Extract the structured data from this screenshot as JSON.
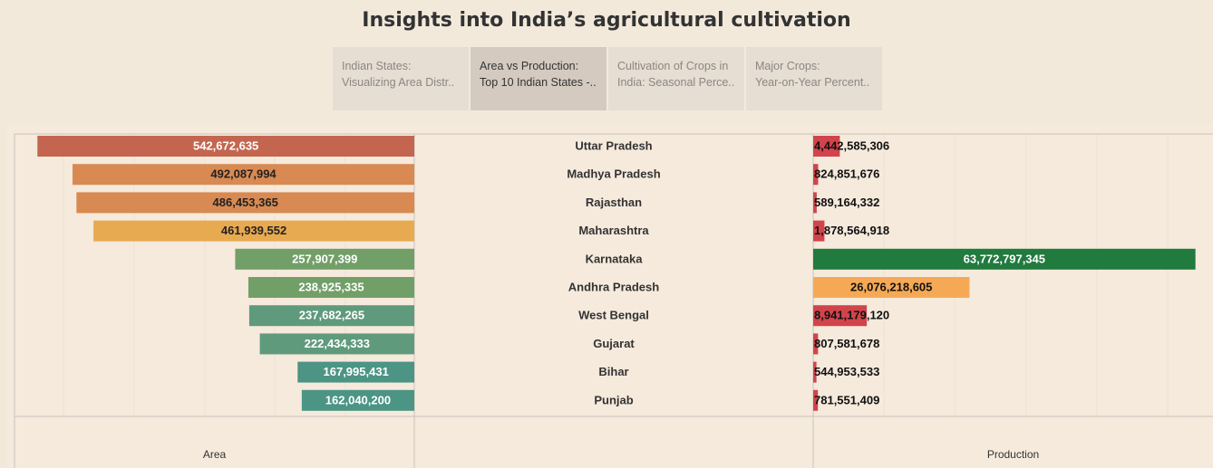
{
  "title": "Insights into India’s agricultural cultivation",
  "tabs": [
    {
      "line1": "Indian States:",
      "line2": "Visualizing Area Distr..",
      "active": false
    },
    {
      "line1": "Area vs Production:",
      "line2": "Top 10 Indian States -..",
      "active": true
    },
    {
      "line1": "Cultivation of Crops in",
      "line2": "India: Seasonal Perce..",
      "active": false
    },
    {
      "line1": "Major Crops:",
      "line2": "Year-on-Year Percent..",
      "active": false
    }
  ],
  "chart_data": {
    "type": "bar",
    "categories": [
      "Uttar Pradesh",
      "Madhya Pradesh",
      "Rajasthan",
      "Maharashtra",
      "Karnataka",
      "Andhra Pradesh",
      "West Bengal",
      "Gujarat",
      "Bihar",
      "Punjab"
    ],
    "area": {
      "axis_label": "Area",
      "values": [
        542672635,
        492087994,
        486453365,
        461939552,
        257907399,
        238925335,
        237682265,
        222434333,
        167995431,
        162040200
      ],
      "labels": [
        "542,672,635",
        "492,087,994",
        "486,453,365",
        "461,939,552",
        "257,907,399",
        "238,925,335",
        "237,682,265",
        "222,434,333",
        "167,995,431",
        "162,040,200"
      ],
      "colors": [
        "#c4664f",
        "#d88a52",
        "#d88a52",
        "#e8aa50",
        "#729f68",
        "#729f68",
        "#5f9a7c",
        "#5f9a7c",
        "#4c9484",
        "#4c9484"
      ],
      "label_colors": [
        "#ffffff",
        "#222222",
        "#222222",
        "#222222",
        "#ffffff",
        "#ffffff",
        "#ffffff",
        "#ffffff",
        "#ffffff",
        "#ffffff"
      ]
    },
    "production": {
      "axis_label": "Production",
      "values": [
        4442585306,
        824851676,
        589164332,
        1878564918,
        63772797345,
        26076218605,
        8941179120,
        807581678,
        544953533,
        781551409
      ],
      "labels": [
        "4,442,585,306",
        "824,851,676",
        "589,164,332",
        "1,878,564,918",
        "63,772,797,345",
        "26,076,218,605",
        "8,941,179,120",
        "807,581,678",
        "544,953,533",
        "781,551,409"
      ],
      "colors": [
        "#d2444b",
        "#d2444b",
        "#d2444b",
        "#d2444b",
        "#217a3e",
        "#f6a955",
        "#d2444b",
        "#d2444b",
        "#d2444b",
        "#d2444b"
      ],
      "label_colors": [
        "#111111",
        "#111111",
        "#111111",
        "#111111",
        "#ffffff",
        "#111111",
        "#111111",
        "#111111",
        "#111111",
        "#111111"
      ]
    }
  }
}
